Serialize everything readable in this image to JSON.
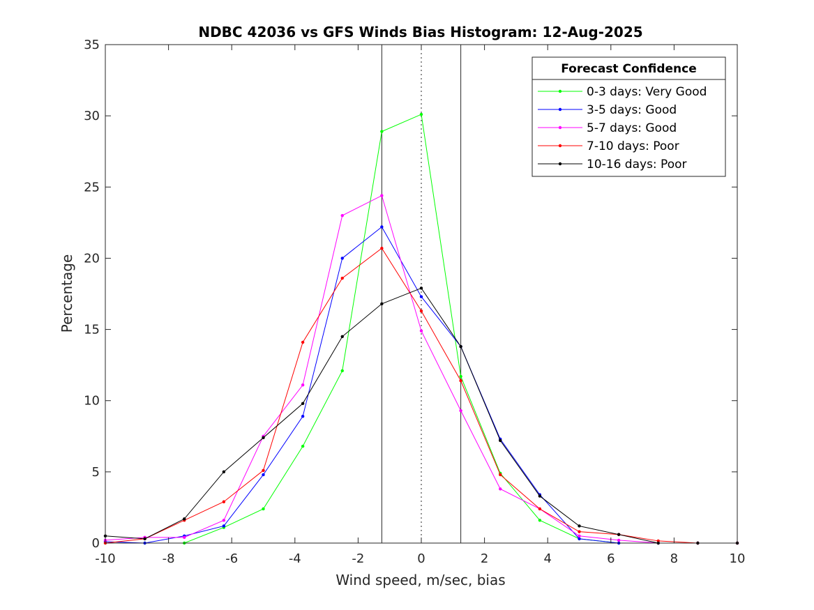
{
  "chart_data": {
    "type": "line",
    "title": "NDBC 42036 vs GFS Winds Bias Histogram: 12-Aug-2025",
    "xlabel": "Wind speed, m/sec, bias",
    "ylabel": "Percentage",
    "xlim": [
      -10,
      10
    ],
    "ylim": [
      0,
      35
    ],
    "xticks": [
      -10,
      -8,
      -6,
      -4,
      -2,
      0,
      2,
      4,
      6,
      8,
      10
    ],
    "yticks": [
      0,
      5,
      10,
      15,
      20,
      25,
      30,
      35
    ],
    "grid": false,
    "legend": {
      "title": "Forecast Confidence",
      "placement": "top-right"
    },
    "reference_lines": [
      {
        "x": -1.25,
        "style": "solid"
      },
      {
        "x": 0,
        "style": "dotted"
      },
      {
        "x": 1.25,
        "style": "solid"
      }
    ],
    "x": [
      -10,
      -8.75,
      -7.5,
      -6.25,
      -5,
      -3.75,
      -2.5,
      -1.25,
      0,
      1.25,
      2.5,
      3.75,
      5,
      6.25,
      7.5,
      8.75,
      10
    ],
    "series": [
      {
        "name": "0-3 days: Very Good",
        "color": "#00ff00",
        "values": [
          0,
          0,
          0,
          1.1,
          2.4,
          6.8,
          12.1,
          28.9,
          30.1,
          11.7,
          4.9,
          1.6,
          0.3,
          0,
          0,
          0,
          0
        ]
      },
      {
        "name": "3-5 days: Good",
        "color": "#0000ff",
        "values": [
          0.1,
          0,
          0.5,
          1.2,
          4.8,
          8.9,
          20,
          22.2,
          17.3,
          13.8,
          7.3,
          3.4,
          0.3,
          0,
          0,
          0,
          0
        ]
      },
      {
        "name": "5-7 days: Good",
        "color": "#ff00ff",
        "values": [
          0.2,
          0.4,
          0.4,
          1.6,
          7.5,
          11.1,
          23,
          24.4,
          14.9,
          9.3,
          3.8,
          2.4,
          0.5,
          0.2,
          0,
          0,
          0
        ]
      },
      {
        "name": "7-10 days: Poor",
        "color": "#ff0000",
        "values": [
          0,
          0.3,
          1.6,
          2.9,
          5.1,
          14.1,
          18.6,
          20.7,
          16.3,
          11.4,
          4.8,
          2.4,
          0.8,
          0.6,
          0.15,
          0,
          0
        ]
      },
      {
        "name": "10-16 days: Poor",
        "color": "#000000",
        "values": [
          0.5,
          0.3,
          1.7,
          5,
          7.4,
          9.8,
          14.5,
          16.8,
          17.9,
          13.8,
          7.2,
          3.3,
          1.2,
          0.6,
          0,
          0,
          0
        ]
      }
    ]
  }
}
